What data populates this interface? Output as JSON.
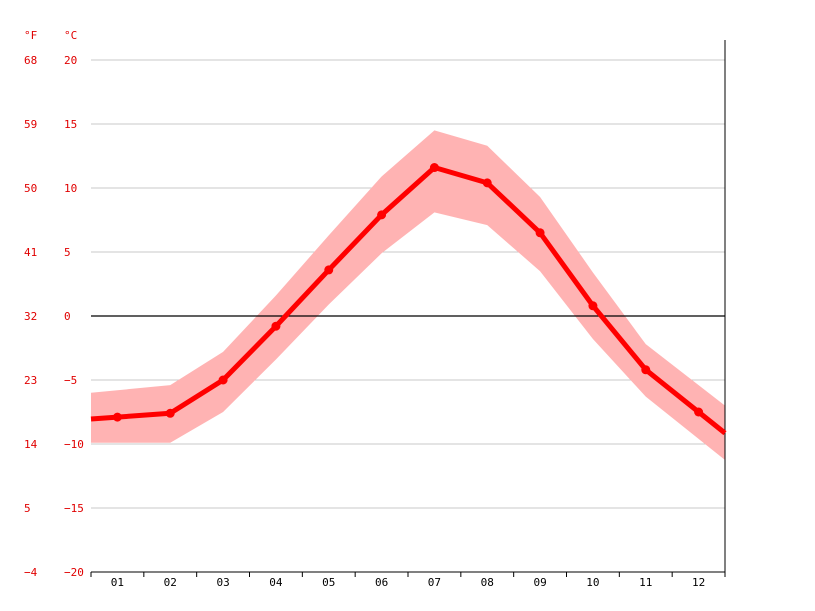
{
  "chart_data": {
    "type": "line",
    "unit_f": "°F",
    "unit_c": "°C",
    "categories": [
      "01",
      "02",
      "03",
      "04",
      "05",
      "06",
      "07",
      "08",
      "09",
      "10",
      "11",
      "12"
    ],
    "y_ticks_c": [
      "20",
      "15",
      "10",
      "5",
      "0",
      "−5",
      "−10",
      "−15",
      "−20"
    ],
    "y_ticks_f": [
      "68",
      "59",
      "50",
      "41",
      "32",
      "23",
      "14",
      "5",
      "−4"
    ],
    "ylim": [
      -20,
      20
    ],
    "grid": true,
    "series": [
      {
        "values": [
          -7.9,
          -7.6,
          -5.0,
          -0.8,
          3.6,
          7.9,
          11.6,
          10.4,
          6.5,
          0.8,
          -4.2,
          -7.5
        ]
      }
    ],
    "band": {
      "upper": [
        -5.8,
        -5.4,
        -2.8,
        1.6,
        6.3,
        10.9,
        14.5,
        13.3,
        9.3,
        3.4,
        -2.2,
        -5.4
      ],
      "lower": [
        -9.9,
        -9.9,
        -7.5,
        -3.4,
        0.9,
        4.9,
        8.1,
        7.1,
        3.5,
        -1.8,
        -6.3,
        -9.6
      ]
    },
    "colors": {
      "line": "#ff0000",
      "band": "#ffb3b3",
      "tick_text": "#e00000",
      "grid": "#c8c8c8",
      "zero": "#000000"
    }
  }
}
